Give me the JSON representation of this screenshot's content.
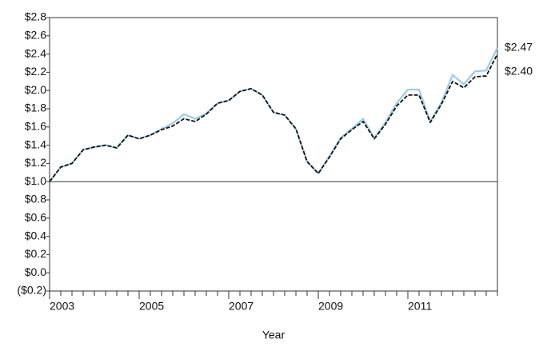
{
  "chart_data": {
    "type": "line",
    "xlabel": "Year",
    "x": [
      2003,
      2003.25,
      2003.5,
      2003.75,
      2004,
      2004.25,
      2004.5,
      2004.75,
      2005,
      2005.25,
      2005.5,
      2005.75,
      2006,
      2006.25,
      2006.5,
      2006.75,
      2007,
      2007.25,
      2007.5,
      2007.75,
      2008,
      2008.25,
      2008.5,
      2008.75,
      2009,
      2009.25,
      2009.5,
      2009.75,
      2010,
      2010.25,
      2010.5,
      2010.75,
      2011,
      2011.25,
      2011.5,
      2011.75,
      2012,
      2012.25,
      2012.5,
      2012.75,
      2013
    ],
    "series": [
      {
        "color": "#9ecbea",
        "dashed": false,
        "values": [
          1.0,
          1.16,
          1.2,
          1.35,
          1.38,
          1.4,
          1.37,
          1.51,
          1.47,
          1.51,
          1.58,
          1.64,
          1.74,
          1.69,
          1.75,
          1.86,
          1.89,
          1.99,
          2.02,
          1.95,
          1.76,
          1.73,
          1.58,
          1.22,
          1.09,
          1.28,
          1.48,
          1.58,
          1.69,
          1.48,
          1.65,
          1.86,
          2.01,
          2.01,
          1.66,
          1.87,
          2.17,
          2.07,
          2.21,
          2.22,
          2.47
        ],
        "value_labels": [
          null,
          null,
          null,
          null,
          null,
          null,
          null,
          null,
          null,
          null,
          null,
          null,
          null,
          null,
          null,
          null,
          null,
          null,
          null,
          null,
          null,
          null,
          null,
          null,
          null,
          null,
          null,
          null,
          null,
          null,
          null,
          null,
          null,
          null,
          null,
          null,
          null,
          null,
          null,
          null,
          "$2.47"
        ]
      },
      {
        "color": "#111111",
        "dashed": true,
        "values": [
          1.0,
          1.16,
          1.2,
          1.35,
          1.38,
          1.4,
          1.37,
          1.51,
          1.47,
          1.51,
          1.57,
          1.61,
          1.69,
          1.66,
          1.74,
          1.86,
          1.89,
          1.99,
          2.02,
          1.95,
          1.76,
          1.73,
          1.58,
          1.22,
          1.09,
          1.27,
          1.47,
          1.57,
          1.66,
          1.47,
          1.63,
          1.83,
          1.95,
          1.95,
          1.65,
          1.85,
          2.1,
          2.03,
          2.15,
          2.16,
          2.4
        ],
        "value_labels": [
          null,
          null,
          null,
          null,
          null,
          null,
          null,
          null,
          null,
          null,
          null,
          null,
          null,
          null,
          null,
          null,
          null,
          null,
          null,
          null,
          null,
          null,
          null,
          null,
          null,
          null,
          null,
          null,
          null,
          null,
          null,
          null,
          null,
          null,
          null,
          null,
          null,
          null,
          null,
          null,
          "$2.40"
        ]
      }
    ],
    "hline": 1.0,
    "xlim": [
      2003,
      2013
    ],
    "xticks": [
      2003,
      2005,
      2007,
      2009,
      2011
    ],
    "ylim": [
      -0.2,
      2.8
    ],
    "yticks": [
      {
        "value": -0.2,
        "label": "($0.2)"
      },
      {
        "value": 0.0,
        "label": "$0.0"
      },
      {
        "value": 0.2,
        "label": "$0.2"
      },
      {
        "value": 0.4,
        "label": "$0.4"
      },
      {
        "value": 0.6,
        "label": "$0.6"
      },
      {
        "value": 0.8,
        "label": "$0.8"
      },
      {
        "value": 1.0,
        "label": "$1.0"
      },
      {
        "value": 1.2,
        "label": "$1.2"
      },
      {
        "value": 1.4,
        "label": "$1.4"
      },
      {
        "value": 1.6,
        "label": "$1.6"
      },
      {
        "value": 1.8,
        "label": "$1.8"
      },
      {
        "value": 2.0,
        "label": "$2.0"
      },
      {
        "value": 2.2,
        "label": "$2.2"
      },
      {
        "value": 2.4,
        "label": "$2.4"
      },
      {
        "value": 2.6,
        "label": "$2.6"
      },
      {
        "value": 2.8,
        "label": "$2.8"
      }
    ],
    "grid": false
  }
}
